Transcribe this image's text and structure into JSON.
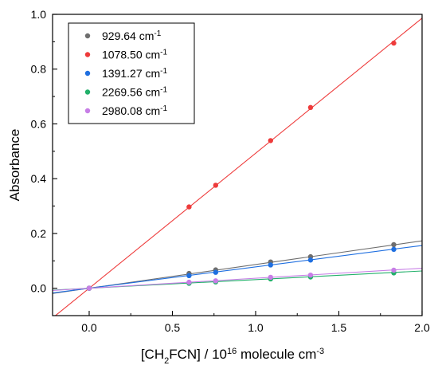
{
  "chart_data": {
    "type": "scatter",
    "xlabel": {
      "parts": [
        {
          "t": "[CH",
          "s": null
        },
        {
          "t": "2",
          "s": "sub"
        },
        {
          "t": "FCN] / 10",
          "s": null
        },
        {
          "t": "16",
          "s": "sup"
        },
        {
          "t": " molecule cm",
          "s": null
        },
        {
          "t": "-3",
          "s": "sup"
        }
      ]
    },
    "ylabel": "Absorbance",
    "xlim": [
      -0.22,
      2.0
    ],
    "ylim": [
      -0.1,
      1.0
    ],
    "xticks": [
      {
        "value": 0.0,
        "label": "0.0"
      },
      {
        "value": 0.5,
        "label": "0.5"
      },
      {
        "value": 1.0,
        "label": "1.0"
      },
      {
        "value": 1.5,
        "label": "1.5"
      },
      {
        "value": 2.0,
        "label": "2.0"
      }
    ],
    "yticks": [
      {
        "value": 0.0,
        "label": "0.0"
      },
      {
        "value": 0.2,
        "label": "0.2"
      },
      {
        "value": 0.4,
        "label": "0.4"
      },
      {
        "value": 0.6,
        "label": "0.6"
      },
      {
        "value": 0.8,
        "label": "0.8"
      },
      {
        "value": 1.0,
        "label": "1.0"
      }
    ],
    "grid": false,
    "legend_position": "top-left",
    "series": [
      {
        "name": "929.64 cm",
        "sup": "-1",
        "color": "#6e6e6e",
        "slope": 0.0865,
        "x": [
          0,
          0.6,
          0.76,
          1.09,
          1.33,
          1.83
        ],
        "y": [
          0.0,
          0.054,
          0.067,
          0.096,
          0.115,
          0.159
        ]
      },
      {
        "name": "1078.50 cm",
        "sup": "-1",
        "color": "#ee3b3b",
        "slope": 0.493,
        "x": [
          0,
          0.6,
          0.76,
          1.09,
          1.33,
          1.83
        ],
        "y": [
          0.0,
          0.297,
          0.376,
          0.539,
          0.66,
          0.895
        ]
      },
      {
        "name": "1391.27 cm",
        "sup": "-1",
        "color": "#1f6fe0",
        "slope": 0.078,
        "x": [
          0,
          0.6,
          0.76,
          1.09,
          1.33,
          1.83
        ],
        "y": [
          0.0,
          0.046,
          0.058,
          0.085,
          0.103,
          0.142
        ]
      },
      {
        "name": "2269.56 cm",
        "sup": "-1",
        "color": "#22b06a",
        "slope": 0.0315,
        "x": [
          0,
          0.6,
          0.76,
          1.09,
          1.33,
          1.83
        ],
        "y": [
          0.0,
          0.018,
          0.023,
          0.034,
          0.041,
          0.056
        ]
      },
      {
        "name": "2980.08 cm",
        "sup": "-1",
        "color": "#c77ee6",
        "slope": 0.0365,
        "x": [
          0,
          0.6,
          0.76,
          1.09,
          1.33,
          1.83
        ],
        "y": [
          0.0,
          0.022,
          0.027,
          0.04,
          0.048,
          0.066
        ]
      }
    ]
  }
}
